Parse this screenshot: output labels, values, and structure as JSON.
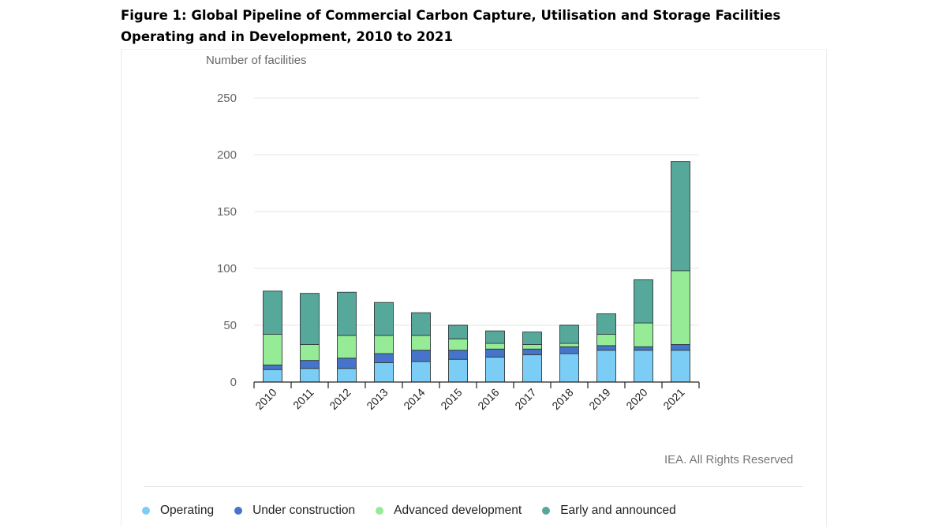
{
  "figure_title": "Figure 1: Global Pipeline of Commercial Carbon Capture, Utilisation and Storage Facilities Operating and in Development, 2010 to 2021",
  "credit": "IEA. All Rights Reserved",
  "colors": {
    "Operating": "#7ccdf6",
    "Under construction": "#4774cb",
    "Advanced development": "#96eb97",
    "Early and announced": "#56a89a"
  },
  "chart_data": {
    "type": "bar",
    "stacked": true,
    "title": "",
    "xlabel": "",
    "ylabel": "Number of facilities",
    "ylim": [
      0,
      250
    ],
    "yticks": [
      0,
      50,
      100,
      150,
      200,
      250
    ],
    "grid": true,
    "legend_position": "bottom",
    "categories": [
      "2010",
      "2011",
      "2012",
      "2013",
      "2014",
      "2015",
      "2016",
      "2017",
      "2018",
      "2019",
      "2020",
      "2021"
    ],
    "series": [
      {
        "name": "Operating",
        "values": [
          11,
          12,
          12,
          17,
          18,
          20,
          22,
          24,
          25,
          28,
          28,
          28
        ]
      },
      {
        "name": "Under construction",
        "values": [
          4,
          7,
          9,
          8,
          10,
          8,
          7,
          5,
          6,
          4,
          3,
          5
        ]
      },
      {
        "name": "Advanced development",
        "values": [
          27,
          14,
          20,
          16,
          13,
          10,
          5,
          4,
          3,
          10,
          21,
          65
        ]
      },
      {
        "name": "Early and announced",
        "values": [
          38,
          45,
          38,
          29,
          20,
          12,
          11,
          11,
          16,
          18,
          38,
          96
        ]
      }
    ]
  }
}
